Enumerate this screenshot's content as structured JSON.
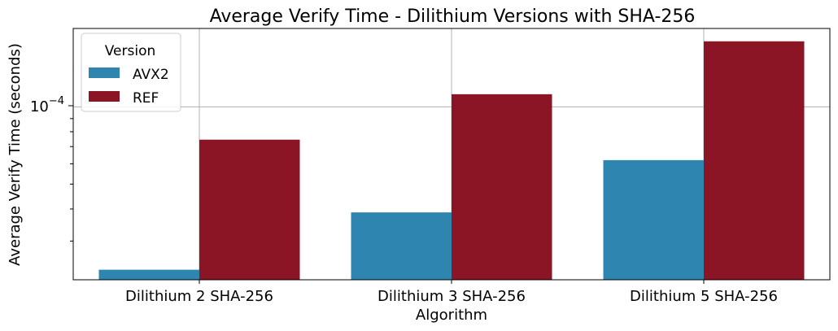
{
  "chart_data": {
    "type": "bar",
    "title": "Average Verify Time - Dilithium Versions with SHA-256",
    "xlabel": "Algorithm",
    "ylabel": "Average Verify Time (seconds)",
    "yscale": "log",
    "ylim": [
      2.12e-05,
      0.000202
    ],
    "ytick_label": "10",
    "ytick_exponent": "−4",
    "grid": true,
    "categories": [
      "Dilithium 2 SHA-256",
      "Dilithium 3 SHA-256",
      "Dilithium 5 SHA-256"
    ],
    "series": [
      {
        "name": "AVX2",
        "color": "#2E86B0",
        "values": [
          2.32e-05,
          3.88e-05,
          6.2e-05
        ]
      },
      {
        "name": "REF",
        "color": "#8B1524",
        "values": [
          7.45e-05,
          0.000112,
          0.00018
        ]
      }
    ],
    "legend": {
      "title": "Version",
      "position": "top-left"
    }
  }
}
